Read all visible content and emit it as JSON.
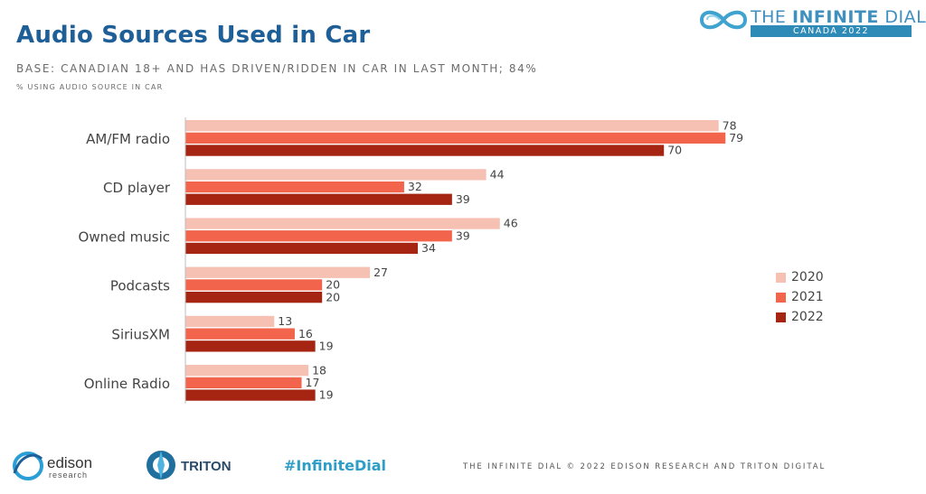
{
  "header": {
    "title": "Audio Sources Used in Car",
    "base": "BASE: CANADIAN 18+ AND HAS DRIVEN/RIDDEN IN CAR IN LAST MONTH; 84%",
    "measure": "% USING AUDIO SOURCE IN CAR"
  },
  "brand": {
    "name_prefix": "THE ",
    "name_bold": "INFINITE",
    "name_suffix": " DIAL",
    "edition": "CANADA 2022",
    "logo_icon": "infinity-loop-icon"
  },
  "chart_data": {
    "type": "bar",
    "orientation": "horizontal",
    "categories": [
      "AM/FM radio",
      "CD player",
      "Owned music",
      "Podcasts",
      "SiriusXM",
      "Online Radio"
    ],
    "series": [
      {
        "name": "2020",
        "color": "#f6c0b3",
        "values": [
          78,
          44,
          46,
          27,
          13,
          18
        ]
      },
      {
        "name": "2021",
        "color": "#f2654c",
        "values": [
          79,
          32,
          39,
          20,
          16,
          17
        ]
      },
      {
        "name": "2022",
        "color": "#a52412",
        "values": [
          70,
          39,
          34,
          20,
          19,
          19
        ]
      }
    ],
    "xlim": [
      0,
      100
    ],
    "data_labels": true,
    "legend_position": "right",
    "grid": false
  },
  "footer": {
    "edison_name": "edison",
    "edison_sub": "research",
    "triton_name": "TRITON",
    "hashtag": "#InfiniteDial",
    "credit": "THE INFINITE DIAL   © 2022 EDISON RESEARCH AND TRITON DIGITAL",
    "edison_icon": "edison-logo-icon",
    "triton_icon": "triton-logo-icon"
  }
}
